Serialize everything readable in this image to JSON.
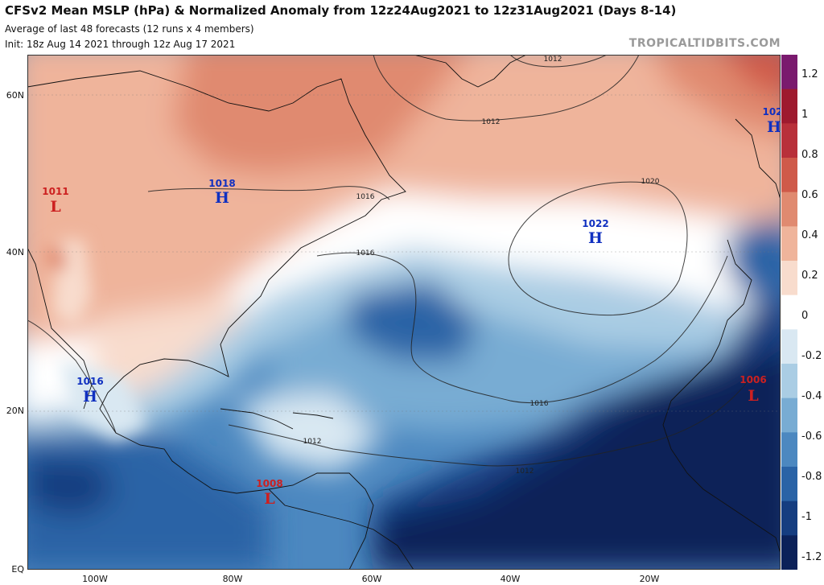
{
  "header": {
    "title": "CFSv2 Mean MSLP (hPa) & Normalized Anomaly from 12z24Aug2021 to 12z31Aug2021 (Days 8-14)",
    "subtitle1": "Average of last 48 forecasts (12 runs x 4 members)",
    "subtitle2": "Init: 18z Aug 14 2021 through 12z Aug 17 2021",
    "credit": "TROPICALTIDBITS.COM"
  },
  "axes": {
    "lat_ticks": [
      "60N",
      "40N",
      "20N",
      "EQ"
    ],
    "lon_ticks": [
      "100W",
      "80W",
      "60W",
      "40W",
      "20W"
    ]
  },
  "colorbar": {
    "ticks": [
      "1.2",
      "1",
      "0.8",
      "0.6",
      "0.4",
      "0.2",
      "0",
      "-0.2",
      "-0.4",
      "-0.6",
      "-0.8",
      "-1",
      "-1.2"
    ],
    "colors": [
      "#7a1a6e",
      "#9e1a2e",
      "#b8303a",
      "#cf5a4a",
      "#e08a70",
      "#efb49b",
      "#f8dccd",
      "#ffffff",
      "#d9e8f2",
      "#aacde4",
      "#78acd3",
      "#4c88c0",
      "#2a63a6",
      "#153d80",
      "#0b2159"
    ]
  },
  "pressure_centers": [
    {
      "label": "1018",
      "type": "H",
      "color": "#1030c0"
    },
    {
      "label": "1011",
      "type": "L",
      "color": "#cc2020"
    },
    {
      "label": "1022",
      "type": "H",
      "color": "#1030c0"
    },
    {
      "label": "102",
      "type": "H",
      "color": "#1030c0"
    },
    {
      "label": "1016",
      "type": "H",
      "color": "#1030c0"
    },
    {
      "label": "1006",
      "type": "L",
      "color": "#cc2020"
    },
    {
      "label": "1008",
      "type": "L",
      "color": "#cc2020"
    }
  ],
  "isobar_labels": [
    "1012",
    "1012",
    "1016",
    "1020",
    "1016",
    "1016",
    "1012",
    "1012"
  ]
}
